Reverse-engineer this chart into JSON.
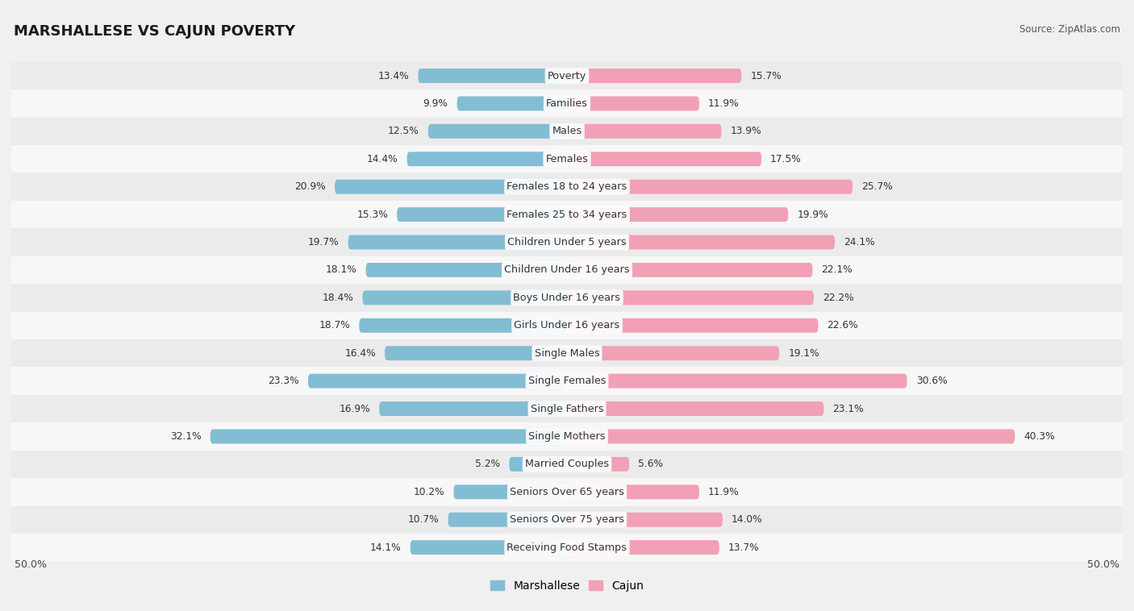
{
  "title": "MARSHALLESE VS CAJUN POVERTY",
  "source": "Source: ZipAtlas.com",
  "categories": [
    "Poverty",
    "Families",
    "Males",
    "Females",
    "Females 18 to 24 years",
    "Females 25 to 34 years",
    "Children Under 5 years",
    "Children Under 16 years",
    "Boys Under 16 years",
    "Girls Under 16 years",
    "Single Males",
    "Single Females",
    "Single Fathers",
    "Single Mothers",
    "Married Couples",
    "Seniors Over 65 years",
    "Seniors Over 75 years",
    "Receiving Food Stamps"
  ],
  "marshallese": [
    13.4,
    9.9,
    12.5,
    14.4,
    20.9,
    15.3,
    19.7,
    18.1,
    18.4,
    18.7,
    16.4,
    23.3,
    16.9,
    32.1,
    5.2,
    10.2,
    10.7,
    14.1
  ],
  "cajun": [
    15.7,
    11.9,
    13.9,
    17.5,
    25.7,
    19.9,
    24.1,
    22.1,
    22.2,
    22.6,
    19.1,
    30.6,
    23.1,
    40.3,
    5.6,
    11.9,
    14.0,
    13.7
  ],
  "marshallese_color": "#82bdd4",
  "cajun_color": "#f2a0b5",
  "bg_row_light": "#f7f7f7",
  "bg_row_dark": "#ebebeb",
  "axis_limit": 50.0,
  "bar_height": 0.52,
  "label_fontsize": 9.2,
  "value_fontsize": 8.8,
  "title_fontsize": 13
}
